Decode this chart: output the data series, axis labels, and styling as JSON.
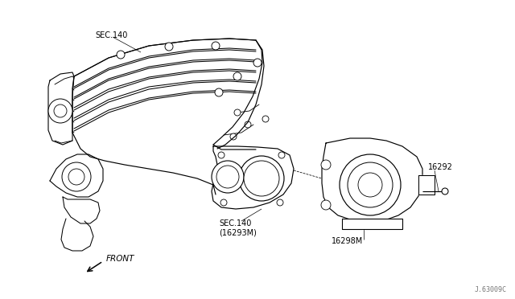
{
  "bg_color": "#ffffff",
  "lc": "#000000",
  "text_color": "#000000",
  "lw_main": 0.9,
  "lw_thin": 0.6,
  "fs_label": 7.0,
  "fs_ref": 6.0,
  "label_sec140": "SEC.140",
  "label_sec140_b": "SEC.140",
  "label_sec140_c": "(16293M)",
  "label_16292": "16292",
  "label_16298m": "16298M",
  "label_front": "FRONT",
  "ref_num": "J.63009C"
}
